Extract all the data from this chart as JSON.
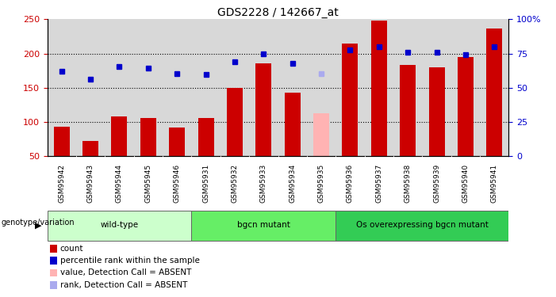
{
  "title": "GDS2228 / 142667_at",
  "samples": [
    "GSM95942",
    "GSM95943",
    "GSM95944",
    "GSM95945",
    "GSM95946",
    "GSM95931",
    "GSM95932",
    "GSM95933",
    "GSM95934",
    "GSM95935",
    "GSM95936",
    "GSM95937",
    "GSM95938",
    "GSM95939",
    "GSM95940",
    "GSM95941"
  ],
  "bar_values": [
    93,
    72,
    108,
    105,
    92,
    105,
    150,
    185,
    143,
    112,
    215,
    248,
    183,
    180,
    195,
    237
  ],
  "bar_colors": [
    "#cc0000",
    "#cc0000",
    "#cc0000",
    "#cc0000",
    "#cc0000",
    "#cc0000",
    "#cc0000",
    "#cc0000",
    "#cc0000",
    "#ffb3b3",
    "#cc0000",
    "#cc0000",
    "#cc0000",
    "#cc0000",
    "#cc0000",
    "#cc0000"
  ],
  "rank_values": [
    174,
    162,
    181,
    178,
    171,
    169,
    188,
    200,
    185,
    170,
    205,
    210,
    202,
    202,
    198,
    210
  ],
  "rank_colors": [
    "#0000cc",
    "#0000cc",
    "#0000cc",
    "#0000cc",
    "#0000cc",
    "#0000cc",
    "#0000cc",
    "#0000cc",
    "#0000cc",
    "#aaaaee",
    "#0000cc",
    "#0000cc",
    "#0000cc",
    "#0000cc",
    "#0000cc",
    "#0000cc"
  ],
  "ylim_left": [
    50,
    250
  ],
  "ylim_right": [
    0,
    100
  ],
  "yticks_left": [
    50,
    100,
    150,
    200,
    250
  ],
  "yticks_right": [
    0,
    25,
    50,
    75,
    100
  ],
  "ytick_labels_right": [
    "0",
    "25",
    "50",
    "75",
    "100%"
  ],
  "hgrid_lines": [
    100,
    150,
    200
  ],
  "groups": [
    {
      "label": "wild-type",
      "start": 0,
      "end": 5,
      "color": "#ccffcc"
    },
    {
      "label": "bgcn mutant",
      "start": 5,
      "end": 10,
      "color": "#66ee66"
    },
    {
      "label": "Os overexpressing bgcn mutant",
      "start": 10,
      "end": 16,
      "color": "#33cc55"
    }
  ],
  "group_label": "genotype/variation",
  "legend_items": [
    {
      "label": "count",
      "color": "#cc0000"
    },
    {
      "label": "percentile rank within the sample",
      "color": "#0000cc"
    },
    {
      "label": "value, Detection Call = ABSENT",
      "color": "#ffb3b3"
    },
    {
      "label": "rank, Detection Call = ABSENT",
      "color": "#aaaaee"
    }
  ],
  "bar_width": 0.55,
  "marker_size": 5,
  "bg_color": "#ffffff",
  "col_bg": "#d8d8d8",
  "tick_color_left": "#cc0000",
  "tick_color_right": "#0000cc"
}
